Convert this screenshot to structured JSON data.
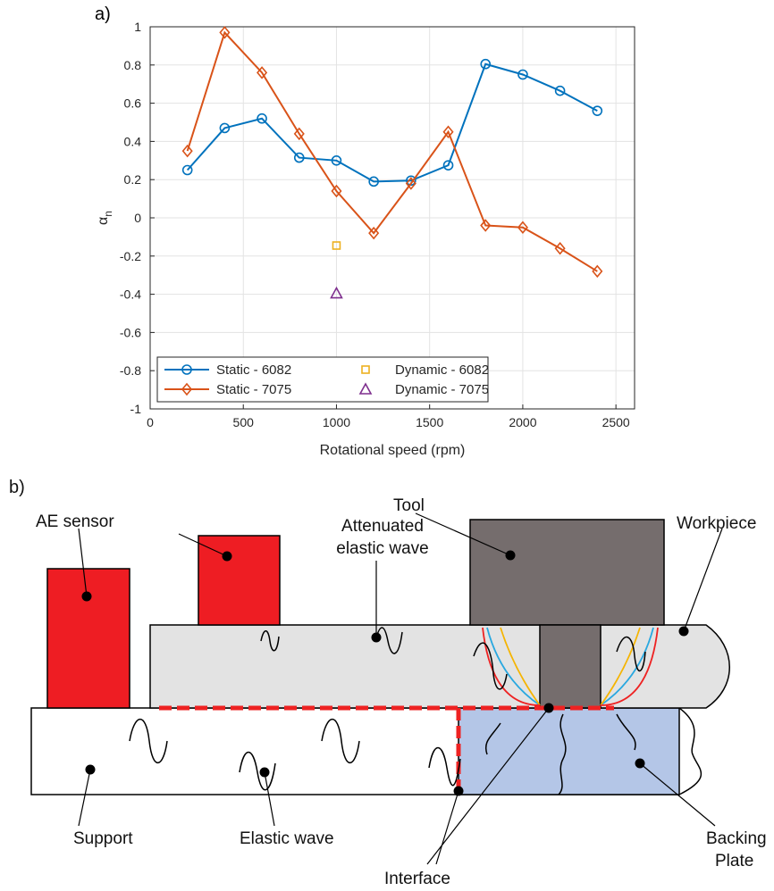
{
  "chart_data": {
    "type": "line",
    "panel_label": "a)",
    "xlabel": "Rotational speed (rpm)",
    "ylabel": {
      "symbol": "α",
      "subscript": "n"
    },
    "xlim": [
      0,
      2600
    ],
    "xticks": [
      0,
      500,
      1000,
      1500,
      2000,
      2500
    ],
    "ylim": [
      -1,
      1
    ],
    "yticks": [
      -1,
      -0.8,
      -0.6,
      -0.4,
      -0.2,
      0,
      0.2,
      0.4,
      0.6,
      0.8,
      1
    ],
    "grid": true,
    "legend": "lower left",
    "legend_columns": 2,
    "series": [
      {
        "name": "Static - 6082",
        "color": "#0072BD",
        "marker": "circle",
        "line": true,
        "x": [
          200,
          400,
          600,
          800,
          1000,
          1200,
          1400,
          1600,
          1800,
          2000,
          2200,
          2400
        ],
        "values": [
          0.25,
          0.47,
          0.52,
          0.315,
          0.3,
          0.19,
          0.195,
          0.275,
          0.805,
          0.75,
          0.665,
          0.56
        ]
      },
      {
        "name": "Static - 7075",
        "color": "#D95319",
        "marker": "diamond",
        "line": true,
        "x": [
          200,
          400,
          600,
          800,
          1000,
          1200,
          1400,
          1600,
          1800,
          2000,
          2200,
          2400
        ],
        "values": [
          0.35,
          0.97,
          0.76,
          0.44,
          0.14,
          -0.08,
          0.18,
          0.45,
          -0.04,
          -0.05,
          -0.16,
          -0.28
        ]
      },
      {
        "name": "Dynamic - 6082",
        "color": "#EDB120",
        "marker": "square",
        "line": false,
        "x": [
          1000
        ],
        "values": [
          -0.145
        ]
      },
      {
        "name": "Dynamic - 7075",
        "color": "#7E2F8E",
        "marker": "triangle",
        "line": false,
        "x": [
          1000
        ],
        "values": [
          -0.395
        ]
      }
    ]
  },
  "diagram": {
    "panel_label": "b)",
    "labels": {
      "ae_sensor": "AE sensor",
      "tool": "Tool",
      "workpiece": "Workpiece",
      "attenuated": [
        "Attenuated",
        "elastic wave"
      ],
      "support": "Support",
      "elastic_wave": "Elastic wave",
      "interface": "Interface",
      "backing_plate": [
        "Backing",
        "Plate"
      ]
    }
  }
}
